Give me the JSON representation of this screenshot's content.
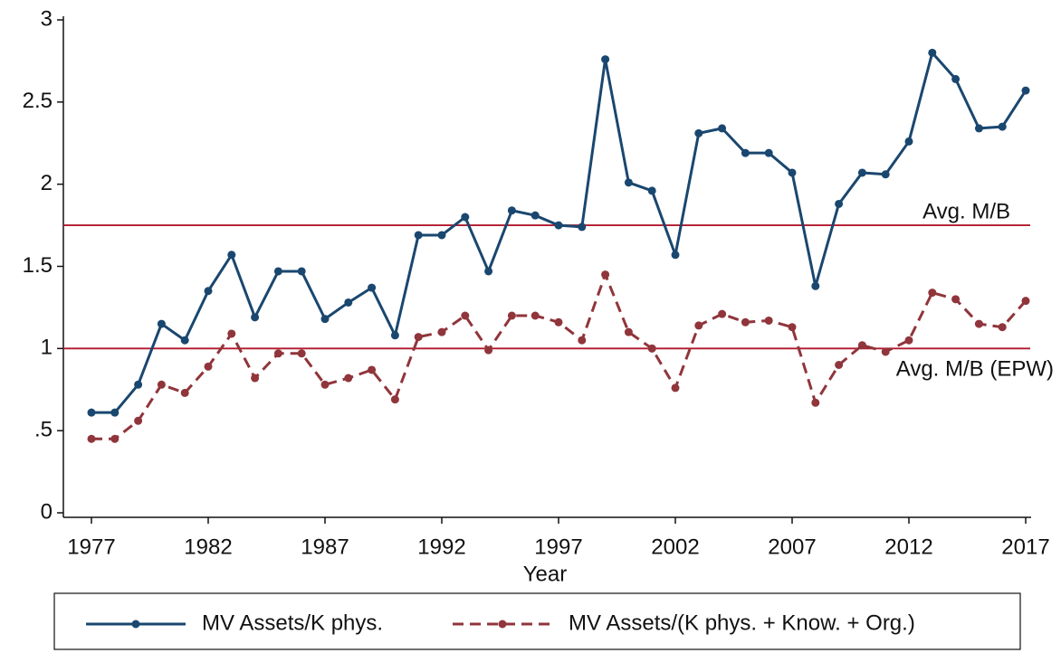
{
  "chart_data": {
    "type": "line",
    "x": [
      1977,
      1978,
      1979,
      1980,
      1981,
      1982,
      1983,
      1984,
      1985,
      1986,
      1987,
      1988,
      1989,
      1990,
      1991,
      1992,
      1993,
      1994,
      1995,
      1996,
      1997,
      1998,
      1999,
      2000,
      2001,
      2002,
      2003,
      2004,
      2005,
      2006,
      2007,
      2008,
      2009,
      2010,
      2011,
      2012,
      2013,
      2014,
      2015,
      2016,
      2017
    ],
    "xlabel": "Year",
    "xlim": [
      1977,
      2017
    ],
    "xticks": [
      1977,
      1982,
      1987,
      1992,
      1997,
      2002,
      2007,
      2012,
      2017
    ],
    "ylim": [
      0,
      3
    ],
    "yticks": [
      0,
      {
        "value": 0.5,
        "label": ".5"
      },
      1,
      1.5,
      2,
      2.5,
      3
    ],
    "series": [
      {
        "name": "MV Assets/K phys.",
        "color": "#1a476f",
        "dash": "solid",
        "values": [
          0.61,
          0.61,
          0.78,
          1.15,
          1.05,
          1.35,
          1.57,
          1.19,
          1.47,
          1.47,
          1.18,
          1.28,
          1.37,
          1.08,
          1.69,
          1.69,
          1.8,
          1.47,
          1.84,
          1.81,
          1.75,
          1.74,
          2.76,
          2.01,
          1.96,
          1.57,
          2.31,
          2.34,
          2.19,
          2.19,
          2.07,
          1.38,
          1.88,
          2.07,
          2.06,
          2.26,
          2.8,
          2.64,
          2.34,
          2.35,
          2.57
        ]
      },
      {
        "name": "MV Assets/(K phys. + Know. + Org.)",
        "color": "#90353b",
        "dash": "dashed",
        "values": [
          0.45,
          0.45,
          0.56,
          0.78,
          0.73,
          0.89,
          1.09,
          0.82,
          0.97,
          0.97,
          0.78,
          0.82,
          0.87,
          0.69,
          1.07,
          1.1,
          1.2,
          0.99,
          1.2,
          1.2,
          1.16,
          1.05,
          1.45,
          1.1,
          1.0,
          0.76,
          1.14,
          1.21,
          1.16,
          1.17,
          1.13,
          0.67,
          0.9,
          1.02,
          0.98,
          1.05,
          1.34,
          1.3,
          1.15,
          1.13,
          1.29
        ]
      }
    ],
    "reference_lines": [
      {
        "value": 1.75,
        "label": "Avg. M/B",
        "color": "#b2182b"
      },
      {
        "value": 1,
        "label": "Avg. M/B (EPW)",
        "color": "#b2182b"
      }
    ],
    "legend": "bottom"
  }
}
